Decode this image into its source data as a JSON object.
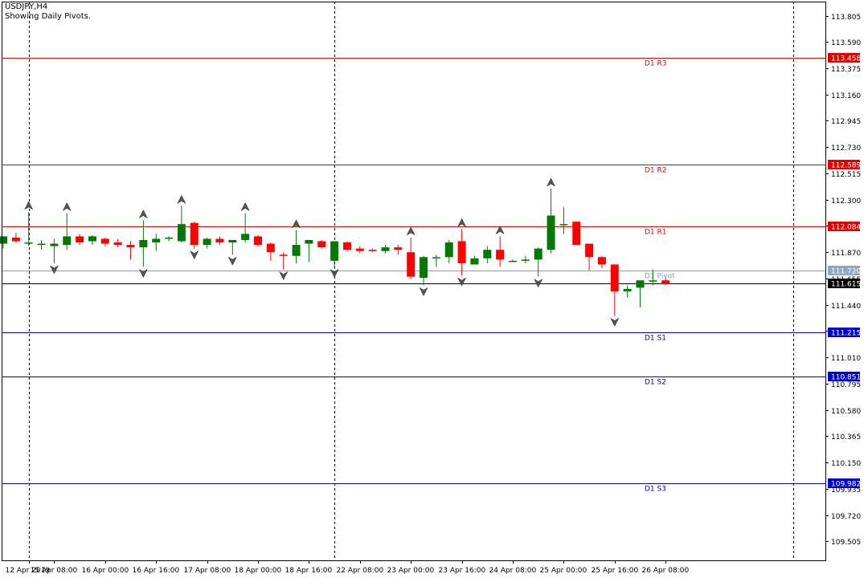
{
  "header": {
    "symbol": "USDJPY,H4",
    "indicator_note": "Showing Daily Pivots."
  },
  "colors": {
    "bull": "#007a00",
    "bear": "#ff0000",
    "resistance": "#e00000",
    "support": "#0000b0",
    "pivot": "#7aa0c0",
    "current_price": "#000000",
    "pivot_tag": "#8fa8c0",
    "resistance_tag": "#e00000",
    "support_tag": "#0000cc",
    "current_tag": "#000000"
  },
  "chart_data": {
    "type": "candlestick",
    "timeframe": "H4",
    "y_ticks": [
      113.805,
      113.59,
      113.375,
      113.16,
      112.945,
      112.73,
      112.515,
      112.3,
      112.085,
      111.87,
      111.655,
      111.44,
      111.225,
      111.01,
      110.795,
      110.58,
      110.365,
      110.15,
      109.935,
      109.72,
      109.505
    ],
    "y_tick_labels": [
      "113.805",
      "113.590",
      "113.375",
      "113.160",
      "112.945",
      "112.730",
      "112.515",
      "112.300",
      "",
      "111.870",
      "111.655",
      "111.440",
      "",
      "111.010",
      "110.795",
      "110.580",
      "110.365",
      "110.150",
      "109.935",
      "109.720",
      "109.505"
    ],
    "ylim": [
      109.35,
      113.92
    ],
    "x_tick_labels": [
      "12 Apr 2019",
      "15 Apr 08:00",
      "16 Apr 00:00",
      "16 Apr 16:00",
      "17 Apr 08:00",
      "18 Apr 00:00",
      "18 Apr 16:00",
      "22 Apr 08:00",
      "23 Apr 00:00",
      "23 Apr 16:00",
      "24 Apr 08:00",
      "25 Apr 00:00",
      "25 Apr 16:00",
      "26 Apr 08:00"
    ],
    "x_tick_bar_index": [
      2,
      4,
      8,
      12,
      16,
      20,
      24,
      28,
      32,
      36,
      40,
      44,
      48,
      52
    ],
    "period_separators_bar_index": [
      2,
      26,
      62
    ],
    "levels": [
      {
        "label": "D1 R3",
        "value": 113.458,
        "tag": "113.458",
        "kind": "resistance"
      },
      {
        "label": "D1 R2",
        "value": 112.589,
        "tag": "112.589",
        "kind": "resistance"
      },
      {
        "label": "D1 R1",
        "value": 112.084,
        "tag": "112.084",
        "kind": "resistance"
      },
      {
        "label": "D1 Pivot",
        "value": 111.72,
        "tag": "111.720",
        "kind": "pivot"
      },
      {
        "label": "D1 S1",
        "value": 111.215,
        "tag": "111.215",
        "kind": "support"
      },
      {
        "label": "D1 S2",
        "value": 110.851,
        "tag": "110.851",
        "kind": "support"
      },
      {
        "label": "D1 S3",
        "value": 109.982,
        "tag": "109.982",
        "kind": "support"
      }
    ],
    "current_price": {
      "value": 111.615,
      "tag": "111.615"
    },
    "candles": [
      {
        "o": 111.94,
        "h": 111.99,
        "l": 111.9,
        "c": 112.0
      },
      {
        "o": 111.99,
        "h": 112.03,
        "l": 111.95,
        "c": 111.96
      },
      {
        "o": 111.94,
        "h": 112.2,
        "l": 111.92,
        "c": 111.95
      },
      {
        "o": 111.93,
        "h": 111.97,
        "l": 111.89,
        "c": 111.94
      },
      {
        "o": 111.92,
        "h": 111.98,
        "l": 111.78,
        "c": 111.94
      },
      {
        "o": 111.93,
        "h": 112.19,
        "l": 111.89,
        "c": 112.0
      },
      {
        "o": 112.0,
        "h": 112.02,
        "l": 111.93,
        "c": 111.95
      },
      {
        "o": 111.96,
        "h": 112.01,
        "l": 111.93,
        "c": 112.0
      },
      {
        "o": 111.98,
        "h": 111.99,
        "l": 111.92,
        "c": 111.94
      },
      {
        "o": 111.95,
        "h": 111.98,
        "l": 111.91,
        "c": 111.93
      },
      {
        "o": 111.93,
        "h": 111.96,
        "l": 111.81,
        "c": 111.91
      },
      {
        "o": 111.91,
        "h": 112.13,
        "l": 111.75,
        "c": 111.97
      },
      {
        "o": 111.95,
        "h": 112.02,
        "l": 111.88,
        "c": 111.98
      },
      {
        "o": 111.98,
        "h": 112.0,
        "l": 111.96,
        "c": 111.99
      },
      {
        "o": 111.96,
        "h": 112.25,
        "l": 111.95,
        "c": 112.1
      },
      {
        "o": 112.11,
        "h": 112.12,
        "l": 111.9,
        "c": 111.93
      },
      {
        "o": 111.93,
        "h": 111.99,
        "l": 111.9,
        "c": 111.98
      },
      {
        "o": 111.98,
        "h": 112.0,
        "l": 111.93,
        "c": 111.95
      },
      {
        "o": 111.95,
        "h": 111.97,
        "l": 111.85,
        "c": 111.97
      },
      {
        "o": 111.97,
        "h": 112.19,
        "l": 111.95,
        "c": 112.02
      },
      {
        "o": 112.0,
        "h": 112.01,
        "l": 111.92,
        "c": 111.93
      },
      {
        "o": 111.94,
        "h": 111.95,
        "l": 111.8,
        "c": 111.87
      },
      {
        "o": 111.85,
        "h": 111.87,
        "l": 111.73,
        "c": 111.84
      },
      {
        "o": 111.84,
        "h": 112.05,
        "l": 111.78,
        "c": 111.93
      },
      {
        "o": 111.94,
        "h": 111.97,
        "l": 111.79,
        "c": 111.97
      },
      {
        "o": 111.96,
        "h": 111.97,
        "l": 111.9,
        "c": 111.91
      },
      {
        "o": 111.8,
        "h": 111.96,
        "l": 111.75,
        "c": 111.96
      },
      {
        "o": 111.95,
        "h": 111.96,
        "l": 111.88,
        "c": 111.89
      },
      {
        "o": 111.9,
        "h": 111.92,
        "l": 111.86,
        "c": 111.88
      },
      {
        "o": 111.89,
        "h": 111.9,
        "l": 111.87,
        "c": 111.88
      },
      {
        "o": 111.88,
        "h": 111.93,
        "l": 111.86,
        "c": 111.91
      },
      {
        "o": 111.91,
        "h": 111.93,
        "l": 111.85,
        "c": 111.89
      },
      {
        "o": 111.87,
        "h": 111.99,
        "l": 111.65,
        "c": 111.67
      },
      {
        "o": 111.66,
        "h": 111.84,
        "l": 111.6,
        "c": 111.83
      },
      {
        "o": 111.83,
        "h": 111.85,
        "l": 111.75,
        "c": 111.83
      },
      {
        "o": 111.83,
        "h": 111.97,
        "l": 111.78,
        "c": 111.95
      },
      {
        "o": 111.96,
        "h": 112.06,
        "l": 111.68,
        "c": 111.78
      },
      {
        "o": 111.77,
        "h": 111.84,
        "l": 111.77,
        "c": 111.82
      },
      {
        "o": 111.82,
        "h": 111.92,
        "l": 111.78,
        "c": 111.89
      },
      {
        "o": 111.89,
        "h": 112.0,
        "l": 111.75,
        "c": 111.81
      },
      {
        "o": 111.8,
        "h": 111.81,
        "l": 111.79,
        "c": 111.8
      },
      {
        "o": 111.8,
        "h": 111.84,
        "l": 111.78,
        "c": 111.81
      },
      {
        "o": 111.81,
        "h": 111.91,
        "l": 111.67,
        "c": 111.9
      },
      {
        "o": 111.89,
        "h": 112.39,
        "l": 111.86,
        "c": 112.17
      },
      {
        "o": 112.1,
        "h": 112.24,
        "l": 112.02,
        "c": 112.1
      },
      {
        "o": 112.12,
        "h": 112.12,
        "l": 111.93,
        "c": 111.93
      },
      {
        "o": 111.94,
        "h": 111.94,
        "l": 111.72,
        "c": 111.83
      },
      {
        "o": 111.83,
        "h": 111.84,
        "l": 111.74,
        "c": 111.77
      },
      {
        "o": 111.77,
        "h": 111.77,
        "l": 111.35,
        "c": 111.55
      },
      {
        "o": 111.55,
        "h": 111.6,
        "l": 111.5,
        "c": 111.57
      },
      {
        "o": 111.58,
        "h": 111.64,
        "l": 111.42,
        "c": 111.64
      },
      {
        "o": 111.64,
        "h": 111.73,
        "l": 111.6,
        "c": 111.64
      },
      {
        "o": 111.64,
        "h": 111.66,
        "l": 111.6,
        "c": 111.61
      }
    ],
    "fractals": [
      {
        "bar": 2,
        "type": "up"
      },
      {
        "bar": 4,
        "type": "down"
      },
      {
        "bar": 5,
        "type": "up"
      },
      {
        "bar": 11,
        "type": "up"
      },
      {
        "bar": 11,
        "type": "down"
      },
      {
        "bar": 14,
        "type": "up"
      },
      {
        "bar": 15,
        "type": "down"
      },
      {
        "bar": 18,
        "type": "down"
      },
      {
        "bar": 19,
        "type": "up"
      },
      {
        "bar": 22,
        "type": "down"
      },
      {
        "bar": 23,
        "type": "up"
      },
      {
        "bar": 26,
        "type": "down"
      },
      {
        "bar": 32,
        "type": "up"
      },
      {
        "bar": 33,
        "type": "down"
      },
      {
        "bar": 36,
        "type": "up"
      },
      {
        "bar": 36,
        "type": "down"
      },
      {
        "bar": 39,
        "type": "up"
      },
      {
        "bar": 42,
        "type": "down"
      },
      {
        "bar": 43,
        "type": "up"
      },
      {
        "bar": 48,
        "type": "down"
      }
    ]
  }
}
